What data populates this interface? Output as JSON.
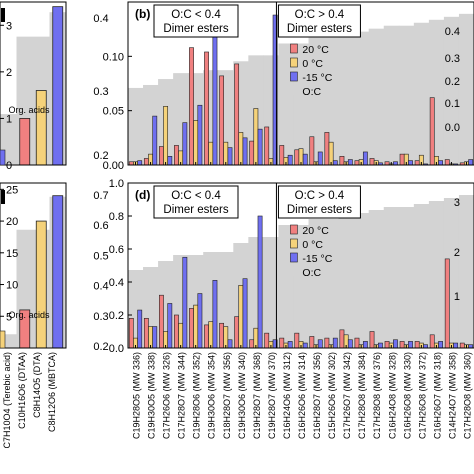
{
  "chart_data": [
    {
      "panel": "",
      "type": "bar",
      "categories": [
        "C7H10O4 (Terebic acid)",
        "C10H16O6 (DTAA)",
        "C8H14O5 (DTA)",
        "C8H12O6 (MBTCA)"
      ],
      "series": [
        {
          "name": "20 °C",
          "values": [
            null,
            1.0,
            null,
            null
          ],
          "color": "#f08080"
        },
        {
          "name": "0 °C",
          "values": [
            null,
            null,
            1.6,
            null
          ],
          "color": "#f5d27a"
        },
        {
          "name": "-15 °C",
          "values": [
            null,
            null,
            null,
            3.4
          ],
          "color": "#6f6ff0"
        }
      ],
      "oc": [
        0.25,
        0.63,
        0.63,
        0.75
      ],
      "ylim": [
        0,
        3.5
      ],
      "yticks": [
        "0",
        "1",
        "2",
        "3"
      ],
      "annotation": "Org. acids"
    },
    {
      "panel": "(b)",
      "type": "bar",
      "categories": [
        "C19H28O5 (MW 336)",
        "C19H30O5 (MW 338)",
        "C17H26O6 (MW 326)",
        "C17H28O7 (MW 344)",
        "C19H28O6 (MW 352)",
        "C19H30O6 (MW 354)",
        "C18H28O7 (MW 356)",
        "C19H30O6 (MW 340)",
        "C19H28O7 (MW 368)",
        "C19H28O7 (MW 370)",
        "C16H24O6 (MW 312)",
        "C16H26O6 (MW 314)",
        "C16H28O7 (MW 356)",
        "C15H26O6 (MW 302)",
        "C17H26O7 (MW 342)",
        "C17H28O8 (MW 384)",
        "C17H28O8 (MW 376)",
        "C16H24O8 (MW 328)",
        "C16H26O8 (MW 330)",
        "C17H26O8 (MW 372)",
        "C16H26O7 (MW 318)",
        "C14H24O7 (MW 358)",
        "C17H28O8 (MW 360)"
      ],
      "series": [
        {
          "name": "20 °C",
          "values": [
            0.003,
            0.006,
            0.017,
            0.018,
            0.108,
            0.104,
            0.082,
            0.093,
            0.022,
            0.035,
            0.018,
            0.014,
            0.026,
            0.03,
            0.008,
            0.004,
            0.006,
            0.003,
            0.01,
            0.004,
            0.062,
            0.005,
            0.002
          ],
          "color": "#f08080"
        },
        {
          "name": "0 °C",
          "values": [
            0.003,
            0.01,
            0.054,
            0.013,
            0.041,
            0.021,
            0.021,
            0.03,
            0.052,
            0.006,
            0.007,
            0.015,
            0.003,
            0.021,
            0.003,
            0.005,
            0.004,
            0.001,
            0.01,
            0.009,
            0.008,
            0.001,
            0.003
          ],
          "color": "#f5d27a"
        },
        {
          "name": "-15 °C",
          "values": [
            0.004,
            0.045,
            0.008,
            0.039,
            0.055,
            0.135,
            0.016,
            0.025,
            0.033,
            0.138,
            0.009,
            0.01,
            0.012,
            0.004,
            0.005,
            0.012,
            0.002,
            0.003,
            0.004,
            0.001,
            0.004,
            0.001,
            0.005
          ],
          "color": "#6f6ff0"
        }
      ],
      "oc": [
        0.26,
        0.27,
        0.29,
        0.31,
        0.31,
        0.32,
        0.32,
        0.35,
        0.37,
        0.37,
        0.41,
        0.41,
        0.43,
        0.43,
        0.44,
        0.45,
        0.46,
        0.47,
        0.47,
        0.48,
        0.49,
        0.5,
        0.51
      ],
      "oc_axis_ticks": [
        "0.4",
        "0.3",
        "0.2",
        "0.1",
        "0.0"
      ],
      "ylim": [
        0,
        0.15
      ],
      "yticks": [
        "0.00",
        "0.05",
        "0.10"
      ],
      "boxes": [
        {
          "line1": "O:C < 0.4",
          "line2": "Dimer esters"
        },
        {
          "line1": "O:C > 0.4",
          "line2": "Dimer esters"
        }
      ],
      "legend": [
        "20 °C",
        "0 °C",
        "-15 °C",
        "O:C"
      ]
    },
    {
      "panel": "",
      "type": "bar",
      "categories": [
        "C7H10O4 (Terebic acid)",
        "C10H16O6 (DTAA)",
        "C8H14O5 (DTA)",
        "C8H12O6 (MBTCA)"
      ],
      "series": [
        {
          "name": "20 °C",
          "values": [
            null,
            6,
            null,
            null
          ],
          "color": "#f08080"
        },
        {
          "name": "0 °C",
          "values": [
            null,
            null,
            20,
            null
          ],
          "color": "#f5d27a"
        },
        {
          "name": "-15 °C",
          "values": [
            null,
            null,
            null,
            24
          ],
          "color": "#6f6ff0"
        }
      ],
      "oc": [
        0.25,
        0.63,
        0.63,
        0.75
      ],
      "ylim": [
        0,
        26
      ],
      "yticks": [
        "25",
        "20",
        "15",
        "10",
        "5"
      ],
      "oc_axis_ticks": [
        "0.7",
        "0.6",
        "0.5",
        "0.4",
        "0.3",
        "0.2"
      ],
      "annotation": "Org. acids"
    },
    {
      "panel": "(d)",
      "type": "bar",
      "categories": [
        "C19H28O5 (MW 336)",
        "C19H30O5 (MW 338)",
        "C17H26O6 (MW 326)",
        "C17H28O7 (MW 344)",
        "C19H28O6 (MW 352)",
        "C19H30O6 (MW 354)",
        "C18H28O7 (MW 356)",
        "C19H30O6 (MW 340)",
        "C19H28O7 (MW 368)",
        "C19H28O7 (MW 370)",
        "C16H24O6 (MW 312)",
        "C16H26O6 (MW 314)",
        "C16H28O7 (MW 356)",
        "C15H26O6 (MW 302)",
        "C17H26O7 (MW 342)",
        "C17H28O8 (MW 384)",
        "C17H28O8 (MW 376)",
        "C16H24O8 (MW 328)",
        "C16H26O8 (MW 330)",
        "C17H26O8 (MW 372)",
        "C16H26O7 (MW 318)",
        "C14H24O7 (MW 358)",
        "C17H28O8 (MW 360)"
      ],
      "series": [
        {
          "name": "20 °C",
          "values": [
            0.18,
            0.18,
            0.32,
            0.2,
            0.24,
            0.14,
            0.15,
            0.19,
            0.05,
            0.09,
            0.06,
            0.09,
            0.07,
            0.06,
            0.11,
            0.06,
            0.1,
            0.04,
            0.04,
            0.04,
            0.08,
            0.54,
            0.03
          ],
          "color": "#f08080"
        },
        {
          "name": "0 °C",
          "values": [
            0.06,
            0.13,
            0.1,
            0.15,
            0.26,
            0.16,
            0.13,
            0.38,
            0.12,
            0.04,
            0.03,
            0.04,
            0.02,
            0.02,
            0.08,
            0.02,
            0.02,
            0.03,
            0.02,
            0.03,
            0.03,
            0.03,
            0.02
          ],
          "color": "#f5d27a"
        },
        {
          "name": "-15 °C",
          "values": [
            0.23,
            0.13,
            0.27,
            0.55,
            0.33,
            0.41,
            0.05,
            0.42,
            0.8,
            0.05,
            0.04,
            0.03,
            0.05,
            0.06,
            0.05,
            0.04,
            0.03,
            0.05,
            0.04,
            0.02,
            0.04,
            0.03,
            0.02
          ],
          "color": "#6f6ff0"
        }
      ],
      "oc": [
        0.26,
        0.27,
        0.29,
        0.31,
        0.31,
        0.32,
        0.32,
        0.35,
        0.37,
        0.37,
        0.41,
        0.41,
        0.43,
        0.43,
        0.44,
        0.45,
        0.46,
        0.47,
        0.47,
        0.48,
        0.49,
        0.5,
        0.51
      ],
      "ylim": [
        0,
        1.0
      ],
      "yticks": [
        "0.0",
        "0.2",
        "0.4",
        "0.6",
        "0.8",
        "1.0"
      ],
      "right_ticks": [
        "3",
        "2",
        "1"
      ],
      "boxes": [
        {
          "line1": "O:C < 0.4",
          "line2": "Dimer esters"
        },
        {
          "line1": "O:C > 0.4",
          "line2": "Dimer esters"
        }
      ],
      "legend": [
        "20 °C",
        "0 °C",
        "-15 °C",
        "O:C"
      ]
    }
  ],
  "colors": {
    "c20": "#f08080",
    "c0": "#f5d27a",
    "cm15": "#6f6ff0",
    "oc": "#d3d3d3"
  }
}
